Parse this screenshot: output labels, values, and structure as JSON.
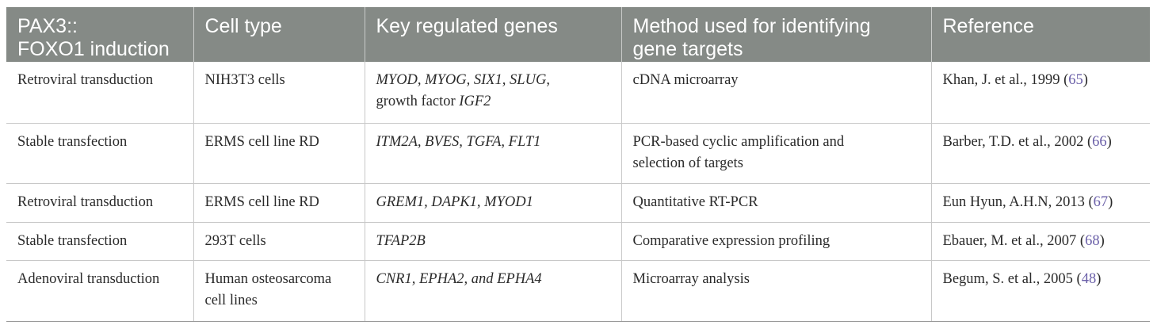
{
  "table": {
    "headers": [
      "PAX3::\nFOXO1 induction",
      "Cell type",
      "Key regulated genes",
      "Method used for identifying\ngene targets",
      "Reference"
    ],
    "rows": [
      {
        "induction": "Retroviral transduction",
        "cell_type": "NIH3T3 cells",
        "genes_a": "MYOD, MYOG, SIX1, SLUG",
        "genes_sep": ",",
        "genes_line2_prefix": "growth factor ",
        "genes_b": "IGF2",
        "method": "cDNA microarray",
        "ref_text": "Khan, J. et al., 1999 (",
        "ref_num": "65",
        "ref_close": ")"
      },
      {
        "induction": "Stable transfection",
        "cell_type": "ERMS cell line RD",
        "genes_a": "ITM2A, BVES, TGFA, FLT1",
        "method": "PCR-based cyclic amplification and\nselection of targets",
        "ref_text": "Barber, T.D. et al., 2002 (",
        "ref_num": "66",
        "ref_close": ")"
      },
      {
        "induction": "Retroviral transduction",
        "cell_type": "ERMS cell line RD",
        "genes_a": "GREM1, DAPK1, MYOD1",
        "method": "Quantitative RT-PCR",
        "ref_text": "Eun Hyun, A.H.N, 2013 (",
        "ref_num": "67",
        "ref_close": ")"
      },
      {
        "induction": "Stable transfection",
        "cell_type": "293T cells",
        "genes_a": "TFAP2B",
        "method": "Comparative expression profiling",
        "ref_text": "Ebauer, M. et al., 2007 (",
        "ref_num": "68",
        "ref_close": ")"
      },
      {
        "induction": "Adenoviral transduction",
        "cell_type": "Human osteosarcoma\ncell lines",
        "genes_a": "CNR1, EPHA2, and EPHA4",
        "method": "Microarray analysis",
        "ref_text": "Begum, S. et al., 2005 (",
        "ref_num": "48",
        "ref_close": ")"
      }
    ]
  }
}
